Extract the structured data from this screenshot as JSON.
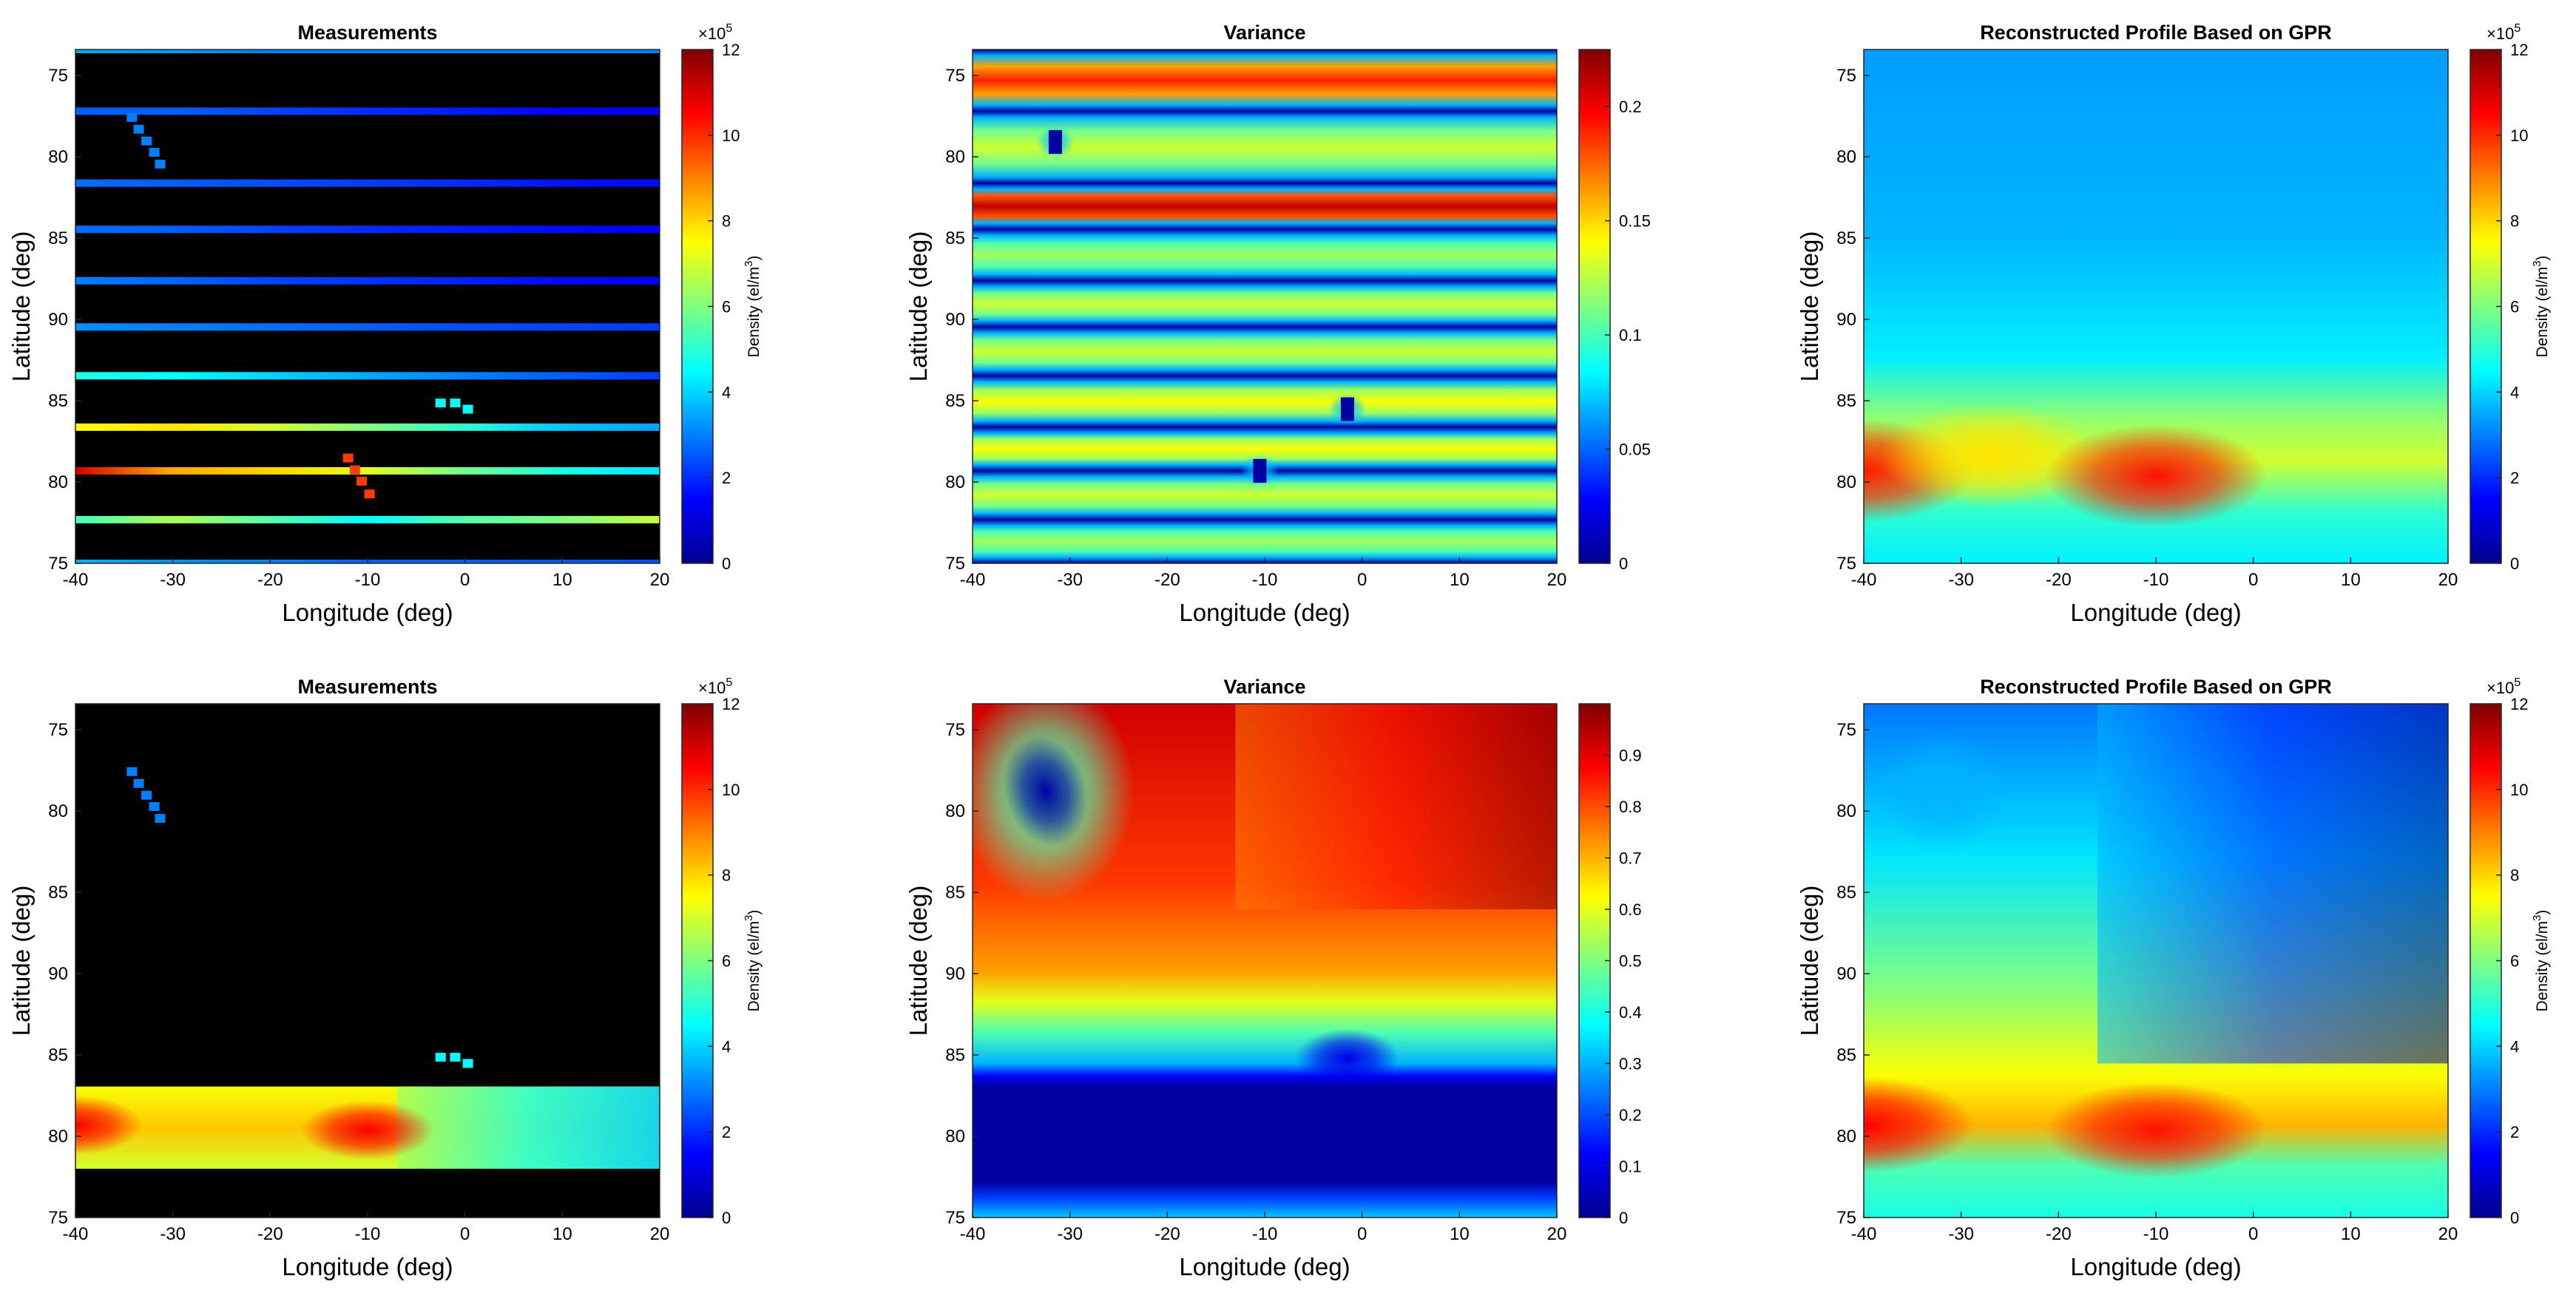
{
  "figure": {
    "colormap": "jet",
    "colormap_stops": [
      "#00008f",
      "#0000ff",
      "#0080ff",
      "#00ffff",
      "#80ff80",
      "#ffff00",
      "#ff8000",
      "#ff0000",
      "#800000"
    ],
    "missing_color": "#000000"
  },
  "chart_data": [
    {
      "id": "measurements-top",
      "type": "heatmap",
      "title": "Measurements",
      "xlabel": "Longitude (deg)",
      "ylabel": "Latitude (deg)",
      "xlim": [
        -40,
        20
      ],
      "ylim": [
        75,
        80
      ],
      "xticks": [
        "-40",
        "-30",
        "-20",
        "-10",
        "0",
        "10",
        "20"
      ],
      "yticks": [
        "75",
        "80",
        "85",
        "90",
        "85",
        "80",
        "75"
      ],
      "colorbar": {
        "label": "Density (el/m3)",
        "exponent": "×10^5",
        "min": 0,
        "max": 12,
        "ticks": [
          "0",
          "2",
          "4",
          "6",
          "8",
          "10",
          "12"
        ]
      },
      "tracks": [
        {
          "y": 0.0,
          "values": [
            3.5,
            3.3,
            3.0,
            3.0,
            3.0,
            3.0,
            3.0
          ]
        },
        {
          "y": 0.12,
          "values": [
            2.6,
            2.6,
            2.3,
            2.0,
            1.8,
            1.5,
            1.4
          ]
        },
        {
          "y": 0.26,
          "values": [
            2.8,
            2.6,
            2.4,
            2.2,
            2.0,
            1.7,
            1.6
          ]
        },
        {
          "y": 0.35,
          "values": [
            2.8,
            2.6,
            2.3,
            2.0,
            1.8,
            1.6,
            1.4
          ]
        },
        {
          "y": 0.45,
          "values": [
            3.0,
            2.7,
            2.3,
            2.1,
            1.9,
            1.6,
            1.5
          ]
        },
        {
          "y": 0.54,
          "values": [
            3.2,
            3.0,
            2.8,
            2.6,
            2.4,
            2.3,
            2.2
          ]
        },
        {
          "y": 0.635,
          "values": [
            4.8,
            4.5,
            4.0,
            3.5,
            3.0,
            2.6,
            2.2
          ]
        },
        {
          "y": 0.735,
          "values": [
            7.5,
            7.8,
            7.0,
            6.0,
            5.0,
            3.8,
            3.4
          ]
        },
        {
          "y": 0.82,
          "values": [
            11.0,
            8.5,
            8.0,
            7.2,
            5.8,
            4.8,
            4.2
          ]
        },
        {
          "y": 0.915,
          "values": [
            5.3,
            6.5,
            5.5,
            4.5,
            5.5,
            6.0,
            6.8
          ]
        },
        {
          "y": 1.0,
          "values": [
            3.6,
            3.2,
            3.0,
            2.6,
            2.6,
            2.5,
            2.4
          ]
        }
      ],
      "squiggles": [
        {
          "lon": [
            -34.2,
            -33.5,
            -32.7,
            -31.9,
            -31.3
          ],
          "lat": [
            0.132,
            0.155,
            0.178,
            0.2,
            0.223
          ],
          "value": 3.0
        },
        {
          "lon": [
            -2.5,
            -1.0,
            0.3
          ],
          "lat": [
            0.688,
            0.688,
            0.7
          ],
          "value": 4.5
        },
        {
          "lon": [
            -12.0,
            -11.3,
            -10.6,
            -9.8
          ],
          "lat": [
            0.795,
            0.818,
            0.84,
            0.865
          ],
          "value": 9.8
        }
      ]
    },
    {
      "id": "variance-top",
      "type": "heatmap",
      "title": "Variance",
      "xlabel": "Longitude (deg)",
      "ylabel": "Latitude (deg)",
      "xlim": [
        -40,
        20
      ],
      "ylim": [
        75,
        80
      ],
      "xticks": [
        "-40",
        "-30",
        "-20",
        "-10",
        "0",
        "10",
        "20"
      ],
      "yticks": [
        "75",
        "80",
        "85",
        "90",
        "85",
        "80",
        "75"
      ],
      "colorbar": {
        "label": "",
        "exponent": "",
        "min": 0,
        "max": 0.225,
        "ticks": [
          "0",
          "0.05",
          "0.1",
          "0.15",
          "0.2"
        ]
      },
      "stripe_rows": [
        0.0,
        0.12,
        0.26,
        0.35,
        0.45,
        0.54,
        0.635,
        0.735,
        0.82,
        0.915,
        1.0
      ],
      "band_peaks": [
        0.19,
        0.13,
        0.21,
        0.12,
        0.13,
        0.13,
        0.14,
        0.14,
        0.13,
        0.12
      ],
      "holes": [
        {
          "lon": -31.5,
          "lat": 0.18
        },
        {
          "lon": -1.5,
          "lat": 0.7
        },
        {
          "lon": -10.5,
          "lat": 0.82
        }
      ]
    },
    {
      "id": "gpr-top",
      "type": "heatmap",
      "title": "Reconstructed Profile Based on GPR",
      "xlabel": "Longitude (deg)",
      "ylabel": "Latitude (deg)",
      "xlim": [
        -40,
        20
      ],
      "ylim": [
        75,
        80
      ],
      "xticks": [
        "-40",
        "-30",
        "-20",
        "-10",
        "0",
        "10",
        "20"
      ],
      "yticks": [
        "75",
        "80",
        "85",
        "90",
        "85",
        "80",
        "75"
      ],
      "colorbar": {
        "label": "Density (el/m3)",
        "exponent": "×10^5",
        "min": 0,
        "max": 12,
        "ticks": [
          "0",
          "2",
          "4",
          "6",
          "8",
          "10",
          "12"
        ]
      },
      "blobs": [
        {
          "lon": -40,
          "lat": 0.82,
          "value": 10.2
        },
        {
          "lon": -27,
          "lat": 0.79,
          "value": 7.8
        },
        {
          "lon": -10,
          "lat": 0.83,
          "value": 10.3
        }
      ]
    },
    {
      "id": "measurements-bottom",
      "type": "heatmap",
      "title": "Measurements",
      "xlabel": "Longitude (deg)",
      "ylabel": "Latitude (deg)",
      "xlim": [
        -40,
        20
      ],
      "ylim": [
        75,
        80
      ],
      "xticks": [
        "-40",
        "-30",
        "-20",
        "-10",
        "0",
        "10",
        "20"
      ],
      "yticks": [
        "75",
        "80",
        "85",
        "90",
        "85",
        "80",
        "75"
      ],
      "colorbar": {
        "label": "Density (el/m3)",
        "exponent": "×10^5",
        "min": 0,
        "max": 12,
        "ticks": [
          "0",
          "2",
          "4",
          "6",
          "8",
          "10",
          "12"
        ]
      },
      "band": {
        "lat_start": 0.745,
        "lat_end": 0.905
      },
      "squiggles": [
        {
          "lon": [
            -34.2,
            -33.5,
            -32.7,
            -31.9,
            -31.3
          ],
          "lat": [
            0.132,
            0.155,
            0.178,
            0.2,
            0.223
          ],
          "value": 3.0
        },
        {
          "lon": [
            -2.5,
            -1.0,
            0.3
          ],
          "lat": [
            0.688,
            0.688,
            0.7
          ],
          "value": 4.5
        }
      ]
    },
    {
      "id": "variance-bottom",
      "type": "heatmap",
      "title": "Variance",
      "xlabel": "Longitude (deg)",
      "ylabel": "Latitude (deg)",
      "xlim": [
        -40,
        20
      ],
      "ylim": [
        75,
        80
      ],
      "xticks": [
        "-40",
        "-30",
        "-20",
        "-10",
        "0",
        "10",
        "20"
      ],
      "yticks": [
        "75",
        "80",
        "85",
        "90",
        "85",
        "80",
        "75"
      ],
      "colorbar": {
        "label": "",
        "exponent": "",
        "min": 0,
        "max": 1,
        "ticks": [
          "0",
          "0.1",
          "0.2",
          "0.3",
          "0.4",
          "0.5",
          "0.6",
          "0.7",
          "0.8",
          "0.9"
        ]
      },
      "holes": [
        {
          "lon": -32.5,
          "lat": 0.17
        },
        {
          "lon": -1.5,
          "lat": 0.69
        }
      ]
    },
    {
      "id": "gpr-bottom",
      "type": "heatmap",
      "title": "Reconstructed Profile Based on GPR",
      "xlabel": "Longitude (deg)",
      "ylabel": "Latitude (deg)",
      "xlim": [
        -40,
        20
      ],
      "ylim": [
        75,
        80
      ],
      "xticks": [
        "-40",
        "-30",
        "-20",
        "-10",
        "0",
        "10",
        "20"
      ],
      "yticks": [
        "75",
        "80",
        "85",
        "90",
        "85",
        "80",
        "75"
      ],
      "colorbar": {
        "label": "Density (el/m3)",
        "exponent": "×10^5",
        "min": 0,
        "max": 12,
        "ticks": [
          "0",
          "2",
          "4",
          "6",
          "8",
          "10",
          "12"
        ]
      },
      "blobs": [
        {
          "lon": -40,
          "lat": 0.82,
          "value": 10.5
        },
        {
          "lon": -10,
          "lat": 0.83,
          "value": 10.3
        }
      ]
    }
  ]
}
